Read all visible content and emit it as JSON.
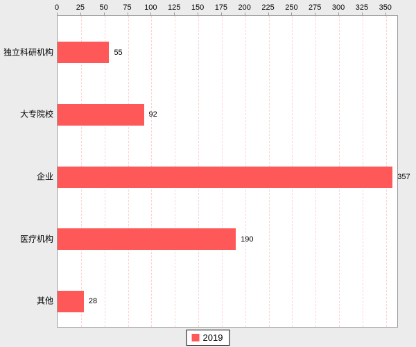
{
  "chart_data": {
    "type": "bar",
    "orientation": "horizontal",
    "title": "",
    "categories": [
      "独立科研机构",
      "大专院校",
      "企业",
      "医疗机构",
      "其他"
    ],
    "series": [
      {
        "name": "2019",
        "values": [
          55,
          92,
          357,
          190,
          28
        ]
      }
    ],
    "data_labels": [
      "55",
      "92",
      "357",
      "190",
      "28"
    ],
    "xaxis": {
      "position": "top",
      "ticks": [
        0,
        25,
        50,
        75,
        100,
        125,
        150,
        175,
        200,
        225,
        250,
        275,
        300,
        325,
        350
      ],
      "tick_step": 25,
      "max": 362
    },
    "grid": true,
    "legend": {
      "position": "bottom",
      "entries": [
        {
          "label": "2019",
          "color": "#ff5858"
        }
      ]
    },
    "colors": {
      "bar": "#ff5858",
      "gridline": "#ffd2d2",
      "plot_border": "#9b9b9b",
      "plot_background": "#ffffff",
      "page_background": "#ececec",
      "text": "#000000"
    }
  }
}
